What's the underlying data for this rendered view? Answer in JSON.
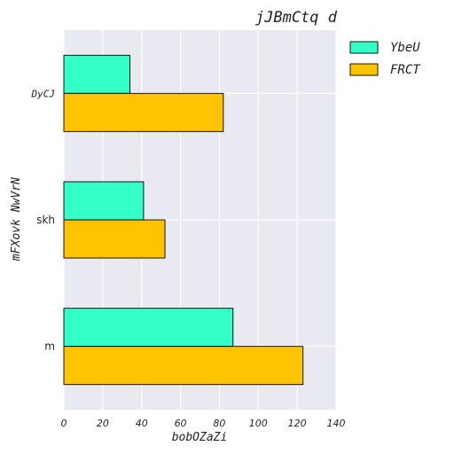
{
  "chart_data": {
    "type": "bar",
    "orientation": "horizontal",
    "title": "jJBmCtq d",
    "xlabel": "bobOZaZi",
    "ylabel": "mFXovk NwVrN",
    "categories": [
      "DyCJ",
      "skh",
      "m"
    ],
    "series": [
      {
        "name": "YbeU",
        "color": "#33ffc7",
        "values": [
          34,
          41,
          87
        ]
      },
      {
        "name": "FRCT",
        "color": "#ffc300",
        "values": [
          82,
          52,
          123
        ]
      }
    ],
    "xlim": [
      0,
      140
    ],
    "xticks": [
      "0",
      "20",
      "40",
      "60",
      "80",
      "100",
      "120",
      "140"
    ],
    "grid": true,
    "legend_position": "outside-top-right"
  }
}
